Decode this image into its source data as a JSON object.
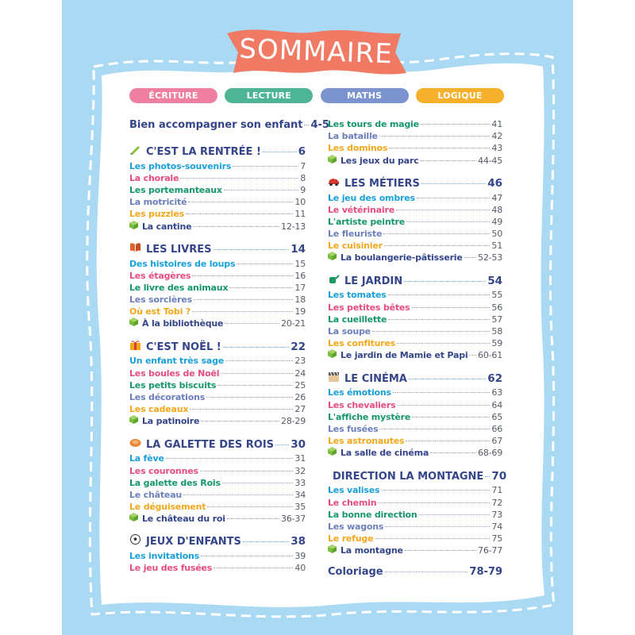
{
  "title": "SOMMAIRE",
  "colors": {
    "background_blue": "#a9d9f3",
    "banner": "#f07a63",
    "cyan": "#1aa0d8",
    "pink": "#e64c80",
    "green": "#16966c",
    "slate": "#6c7fbb",
    "orange": "#f2a71c",
    "navy": "#34458a"
  },
  "legend": [
    {
      "label": "ÉCRITURE",
      "color": "#ef7fa0"
    },
    {
      "label": "LECTURE",
      "color": "#4db596"
    },
    {
      "label": "MATHS",
      "color": "#7b93cf"
    },
    {
      "label": "LOGIQUE",
      "color": "#f5b12c"
    }
  ],
  "left_column": [
    {
      "type": "major",
      "title": "Bien accompagner son enfant",
      "page": "4-5"
    },
    {
      "type": "section",
      "icon": "pencil-icon",
      "title": "C'EST LA RENTRÉE !",
      "page": "6",
      "items": [
        {
          "label": "Les photos-souvenirs",
          "page": "7",
          "color": "cyan"
        },
        {
          "label": "La chorale",
          "page": "8",
          "color": "pink"
        },
        {
          "label": "Les portemanteaux",
          "page": "9",
          "color": "green"
        },
        {
          "label": "La motricité",
          "page": "10",
          "color": "slate"
        },
        {
          "label": "Les puzzles",
          "page": "11",
          "color": "orange"
        },
        {
          "label": "La cantine",
          "page": "12-13",
          "color": "navy",
          "activity": true
        }
      ]
    },
    {
      "type": "section",
      "icon": "book-icon",
      "title": "LES LIVRES",
      "page": "14",
      "items": [
        {
          "label": "Des histoires de loups",
          "page": "15",
          "color": "cyan"
        },
        {
          "label": "Les étagères",
          "page": "16",
          "color": "pink"
        },
        {
          "label": "Le livre des animaux",
          "page": "17",
          "color": "green"
        },
        {
          "label": "Les sorcières",
          "page": "18",
          "color": "slate"
        },
        {
          "label": "Où est Tobi ?",
          "page": "19",
          "color": "orange"
        },
        {
          "label": "À la bibliothèque",
          "page": "20-21",
          "color": "navy",
          "activity": true
        }
      ]
    },
    {
      "type": "section",
      "icon": "gift-icon",
      "title": "C'EST NOËL !",
      "page": "22",
      "items": [
        {
          "label": "Un enfant très sage",
          "page": "23",
          "color": "cyan"
        },
        {
          "label": "Les boules de Noël",
          "page": "24",
          "color": "pink"
        },
        {
          "label": "Les petits biscuits",
          "page": "25",
          "color": "green"
        },
        {
          "label": "Les décorations",
          "page": "26",
          "color": "slate"
        },
        {
          "label": "Les cadeaux",
          "page": "27",
          "color": "orange"
        },
        {
          "label": "La patinoire",
          "page": "28-29",
          "color": "navy",
          "activity": true
        }
      ]
    },
    {
      "type": "section",
      "icon": "galette-icon",
      "title": "LA GALETTE DES ROIS",
      "page": "30",
      "items": [
        {
          "label": "La fève",
          "page": "31",
          "color": "cyan"
        },
        {
          "label": "Les couronnes",
          "page": "32",
          "color": "pink"
        },
        {
          "label": "La galette des Rois",
          "page": "33",
          "color": "green"
        },
        {
          "label": "Le château",
          "page": "34",
          "color": "slate"
        },
        {
          "label": "Le déguisement",
          "page": "35",
          "color": "orange"
        },
        {
          "label": "Le château du roi",
          "page": "36-37",
          "color": "navy",
          "activity": true
        }
      ]
    },
    {
      "type": "section",
      "icon": "soccer-ball-icon",
      "title": "JEUX D'ENFANTS",
      "page": "38",
      "items": [
        {
          "label": "Les invitations",
          "page": "39",
          "color": "cyan"
        },
        {
          "label": "Le jeu des fusées",
          "page": "40",
          "color": "pink"
        }
      ]
    }
  ],
  "right_column": [
    {
      "type": "continuation",
      "items": [
        {
          "label": "Les tours de magie",
          "page": "41",
          "color": "green"
        },
        {
          "label": "La bataille",
          "page": "42",
          "color": "slate"
        },
        {
          "label": "Les dominos",
          "page": "43",
          "color": "orange"
        },
        {
          "label": "Les jeux du parc",
          "page": "44-45",
          "color": "navy",
          "activity": true
        }
      ]
    },
    {
      "type": "section",
      "icon": "car-icon",
      "title": "LES MÉTIERS",
      "page": "46",
      "items": [
        {
          "label": "Le jeu des ombres",
          "page": "47",
          "color": "cyan"
        },
        {
          "label": "Le vétérinaire",
          "page": "48",
          "color": "pink"
        },
        {
          "label": "L'artiste peintre",
          "page": "49",
          "color": "green"
        },
        {
          "label": "Le fleuriste",
          "page": "50",
          "color": "slate"
        },
        {
          "label": "Le cuisinier",
          "page": "51",
          "color": "orange"
        },
        {
          "label": "La boulangerie-pâtisserie",
          "page": "52-53",
          "color": "navy",
          "activity": true
        }
      ]
    },
    {
      "type": "section",
      "icon": "watering-can-icon",
      "title": "LE JARDIN",
      "page": "54",
      "items": [
        {
          "label": "Les tomates",
          "page": "55",
          "color": "cyan"
        },
        {
          "label": "Les petites bêtes",
          "page": "56",
          "color": "pink"
        },
        {
          "label": "La cueillette",
          "page": "57",
          "color": "green"
        },
        {
          "label": "La soupe",
          "page": "58",
          "color": "slate"
        },
        {
          "label": "Les confitures",
          "page": "59",
          "color": "orange"
        },
        {
          "label": "Le jardin de Mamie et Papi",
          "page": "60-61",
          "color": "navy",
          "activity": true
        }
      ]
    },
    {
      "type": "section",
      "icon": "clapperboard-icon",
      "title": "LE CINÉMA",
      "page": "62",
      "items": [
        {
          "label": "Les émotions",
          "page": "63",
          "color": "cyan"
        },
        {
          "label": "Les chevaliers",
          "page": "64",
          "color": "pink"
        },
        {
          "label": "L'affiche mystère",
          "page": "65",
          "color": "green"
        },
        {
          "label": "Les fusées",
          "page": "66",
          "color": "slate"
        },
        {
          "label": "Les astronautes",
          "page": "67",
          "color": "orange"
        },
        {
          "label": "La salle de cinéma",
          "page": "68-69",
          "color": "navy",
          "activity": true
        }
      ]
    },
    {
      "type": "section",
      "icon": "cloud-icon",
      "title": "DIRECTION LA MONTAGNE",
      "page": "70",
      "items": [
        {
          "label": "Les valises",
          "page": "71",
          "color": "cyan"
        },
        {
          "label": "Le chemin",
          "page": "72",
          "color": "pink"
        },
        {
          "label": "La bonne direction",
          "page": "73",
          "color": "green"
        },
        {
          "label": "Les wagons",
          "page": "74",
          "color": "slate"
        },
        {
          "label": "Le refuge",
          "page": "75",
          "color": "orange"
        },
        {
          "label": "La montagne",
          "page": "76-77",
          "color": "navy",
          "activity": true
        }
      ]
    },
    {
      "type": "major",
      "title": "Coloriage",
      "page": "78-79"
    }
  ]
}
